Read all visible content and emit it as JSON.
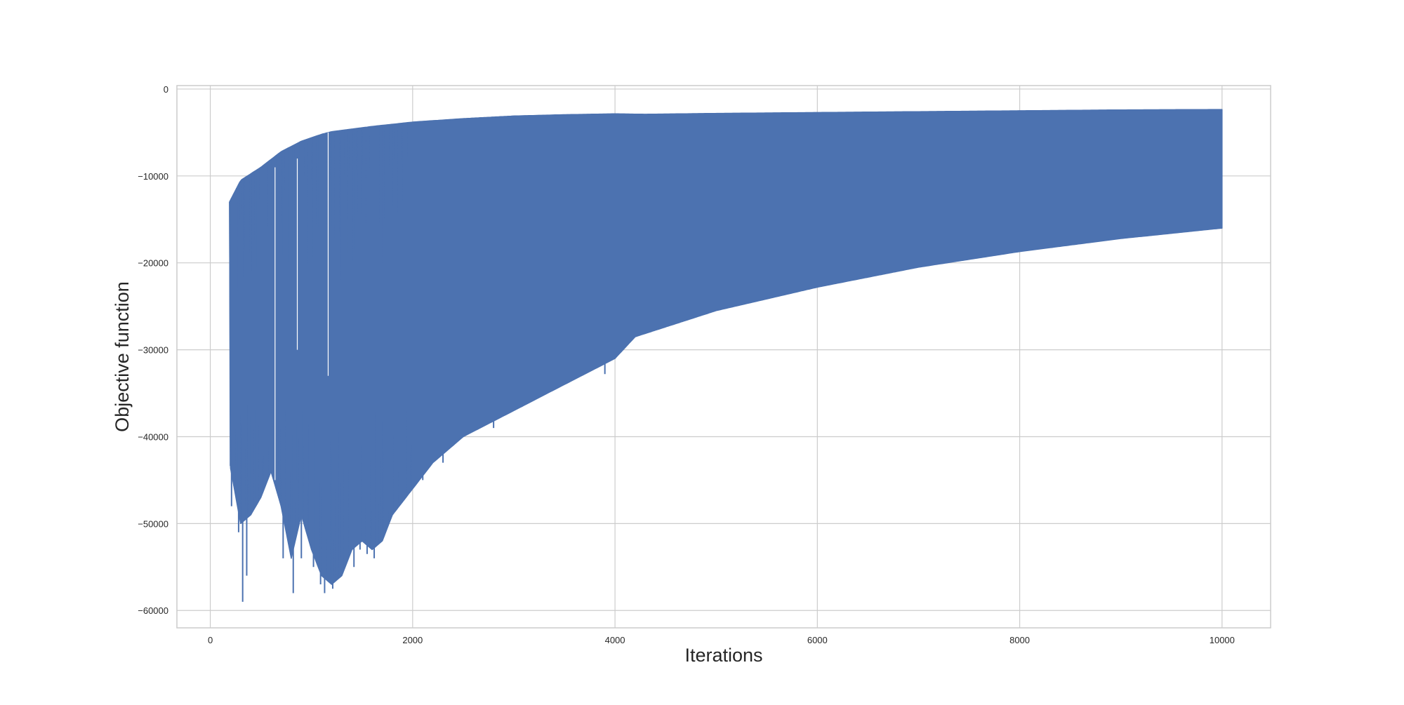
{
  "chart_data": {
    "type": "line",
    "title": "",
    "xlabel": "Iterations",
    "ylabel": "Objective function",
    "xlim": [
      -330,
      10480
    ],
    "ylim": [
      -62000,
      400
    ],
    "xticks": [
      0,
      2000,
      4000,
      6000,
      8000,
      10000
    ],
    "xtick_labels": [
      "0",
      "2000",
      "4000",
      "6000",
      "8000",
      "10000"
    ],
    "yticks": [
      0,
      -10000,
      -20000,
      -30000,
      -40000,
      -50000,
      -60000
    ],
    "ytick_labels": [
      "0",
      "−10000",
      "−20000",
      "−30000",
      "−40000",
      "−50000",
      "−60000"
    ],
    "grid": true,
    "legend": "none",
    "style": {
      "line_color": "#4c72b0",
      "grid_color": "#cccccc",
      "frame_color": "#cccccc"
    },
    "series": [
      {
        "name": "",
        "description": "oscillating objective: per-iteration values alternate between an upper and a lower envelope",
        "upper_envelope": {
          "x": [
            190,
            300,
            500,
            700,
            900,
            1100,
            1200,
            1400,
            1600,
            2000,
            2500,
            3000,
            3500,
            4000,
            4300,
            5000,
            6000,
            7000,
            8000,
            9000,
            10000
          ],
          "y": [
            -13000,
            -10500,
            -9000,
            -7200,
            -6000,
            -5200,
            -4900,
            -4600,
            -4300,
            -3800,
            -3400,
            -3100,
            -2950,
            -2850,
            -2900,
            -2800,
            -2700,
            -2600,
            -2500,
            -2400,
            -2350
          ]
        },
        "lower_envelope": {
          "x": [
            190,
            300,
            400,
            500,
            600,
            700,
            800,
            900,
            1000,
            1100,
            1200,
            1300,
            1400,
            1500,
            1600,
            1700,
            1800,
            2000,
            2200,
            2500,
            3000,
            3500,
            4000,
            4200,
            5000,
            6000,
            7000,
            8000,
            9000,
            10000
          ],
          "y": [
            -43000,
            -50000,
            -49000,
            -47000,
            -44000,
            -48000,
            -54000,
            -49000,
            -53000,
            -56000,
            -57000,
            -56000,
            -53000,
            -52000,
            -53000,
            -52000,
            -49000,
            -46000,
            -43000,
            -40000,
            -37000,
            -34000,
            -31000,
            -28500,
            -25500,
            -22800,
            -20500,
            -18700,
            -17200,
            -16000
          ]
        },
        "spikes": {
          "x": [
            210,
            230,
            260,
            280,
            320,
            360,
            400,
            450,
            500,
            560,
            620,
            680,
            720,
            780,
            820,
            860,
            900,
            940,
            980,
            1020,
            1060,
            1090,
            1130,
            1170,
            1210,
            1260,
            1300,
            1350,
            1420,
            1480,
            1550,
            1620,
            1690,
            1760,
            2100,
            2300,
            2800,
            3300,
            3700,
            3900
          ],
          "y": [
            -48000,
            -42000,
            -44000,
            -51000,
            -59000,
            -56000,
            -49000,
            -47000,
            -43000,
            -41000,
            -40000,
            -45000,
            -54000,
            -41000,
            -58000,
            -45000,
            -54000,
            -49000,
            -52000,
            -55000,
            -54000,
            -57000,
            -58000,
            -55000,
            -57500,
            -56000,
            -54000,
            -53500,
            -55000,
            -53000,
            -53500,
            -54000,
            -51000,
            -48500,
            -45000,
            -43000,
            -39000,
            -34500,
            -32500,
            -32800
          ]
        }
      }
    ]
  }
}
